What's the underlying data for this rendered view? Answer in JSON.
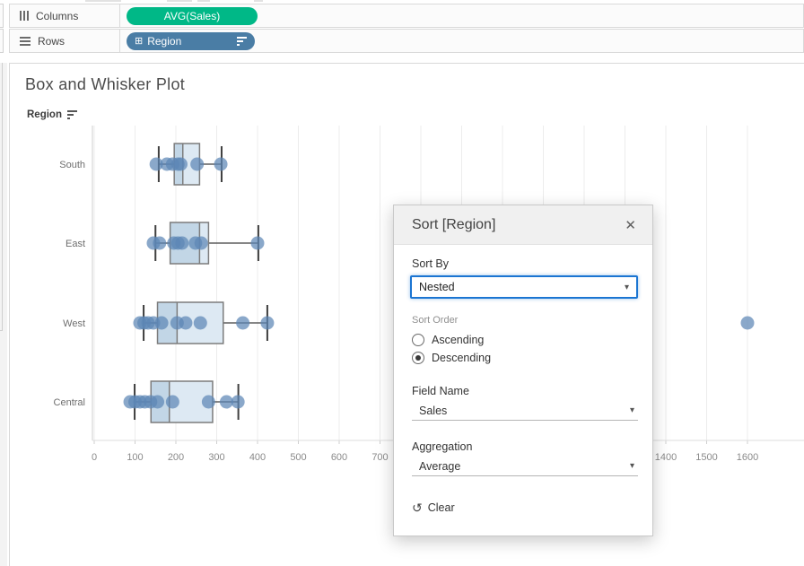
{
  "icons": {
    "close": "✕",
    "clear_undo": "↺",
    "caret": "▾",
    "expand_plus": "⊞"
  },
  "colors": {
    "pill_green": "#00b887",
    "pill_blue": "#4a7da5",
    "dot": "#5d87b5",
    "box_fill_low": "#c2d6e6",
    "box_fill_high": "#dde9f3",
    "box_stroke": "#7c7c7c",
    "whisker": "#3f3f3f",
    "gridline": "#ececec",
    "axis_line": "#cfcfcf",
    "focus_blue": "#1b75d2"
  },
  "shelves": {
    "columns_label": "Columns",
    "columns_pill": "AVG(Sales)",
    "rows_label": "Rows",
    "rows_pill": "Region"
  },
  "sheet": {
    "title": "Box and Whisker Plot",
    "row_field": "Region"
  },
  "chart_data": {
    "type": "box",
    "orientation": "horizontal",
    "title": "Box and Whisker Plot",
    "categories": [
      "South",
      "East",
      "West",
      "Central"
    ],
    "x_ticks_visible": [
      0,
      100,
      200,
      300,
      400,
      500,
      600,
      700,
      1400,
      1500,
      1600
    ],
    "x_gridline_step": 100,
    "xlim": [
      0,
      1740
    ],
    "grid": true,
    "legend": "none",
    "series": [
      {
        "category": "South",
        "whisker_low": 158,
        "q1": 196,
        "median": 217,
        "q3": 258,
        "whisker_high": 312,
        "points": [
          152,
          178,
          192,
          205,
          212,
          252,
          310
        ]
      },
      {
        "category": "East",
        "whisker_low": 150,
        "q1": 186,
        "median": 258,
        "q3": 280,
        "whisker_high": 402,
        "points": [
          145,
          160,
          195,
          205,
          215,
          248,
          262,
          400
        ]
      },
      {
        "category": "West",
        "whisker_low": 121,
        "q1": 155,
        "median": 203,
        "q3": 316,
        "whisker_high": 424,
        "points": [
          112,
          122,
          132,
          145,
          165,
          203,
          224,
          260,
          364,
          424,
          1600
        ]
      },
      {
        "category": "Central",
        "whisker_low": 99,
        "q1": 139,
        "median": 184,
        "q3": 290,
        "whisker_high": 353,
        "points": [
          88,
          100,
          112,
          124,
          138,
          155,
          192,
          280,
          324,
          352
        ]
      }
    ]
  },
  "dialog": {
    "title": "Sort [Region]",
    "sort_by_label": "Sort By",
    "sort_by_value": "Nested",
    "sort_order_label": "Sort Order",
    "sort_order_options": [
      "Ascending",
      "Descending"
    ],
    "sort_order_selected": "Descending",
    "field_name_label": "Field Name",
    "field_name_value": "Sales",
    "aggregation_label": "Aggregation",
    "aggregation_value": "Average",
    "clear_label": "Clear"
  }
}
